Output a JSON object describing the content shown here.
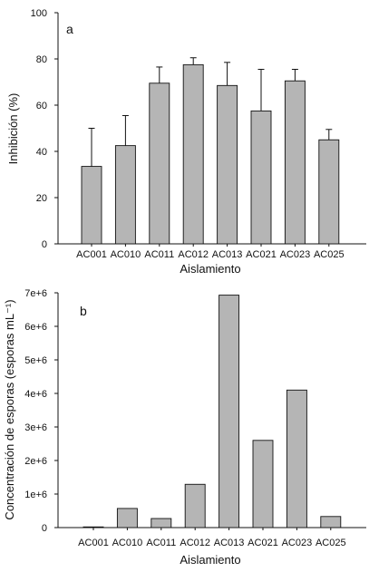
{
  "chart_data": [
    {
      "type": "bar",
      "panel_label": "a",
      "categories": [
        "AC001",
        "AC010",
        "AC011",
        "AC012",
        "AC013",
        "AC021",
        "AC023",
        "AC025"
      ],
      "values": [
        33.5,
        42.5,
        69.5,
        77.5,
        68.5,
        57.5,
        70.5,
        45
      ],
      "error_upper": [
        16.5,
        13,
        7,
        3,
        10,
        18,
        5,
        4.5
      ],
      "xlabel": "Aislamiento",
      "ylabel": "Inhibición (%)",
      "ylim": [
        0,
        100
      ],
      "yticks": [
        0,
        20,
        40,
        60,
        80,
        100
      ],
      "ytick_labels": [
        "0",
        "20",
        "40",
        "60",
        "80",
        "100"
      ],
      "bar_color": "#b5b5b5",
      "grid": false,
      "legend": "none"
    },
    {
      "type": "bar",
      "panel_label": "b",
      "categories": [
        "AC001",
        "AC010",
        "AC011",
        "AC012",
        "AC013",
        "AC021",
        "AC023",
        "AC025"
      ],
      "values": [
        20000,
        570000,
        270000,
        1290000,
        6930000,
        2600000,
        4100000,
        330000
      ],
      "xlabel": "Aislamiento",
      "ylabel": "Concentración de esporas (esporas mL⁻¹)",
      "ylim": [
        0,
        7000000
      ],
      "yticks": [
        0,
        1000000,
        2000000,
        3000000,
        4000000,
        5000000,
        6000000,
        7000000
      ],
      "ytick_labels": [
        "0",
        "1e+6",
        "2e+6",
        "3e+6",
        "4e+6",
        "5e+6",
        "6e+6",
        "7e+6"
      ],
      "bar_color": "#b5b5b5",
      "grid": false,
      "legend": "none"
    }
  ]
}
